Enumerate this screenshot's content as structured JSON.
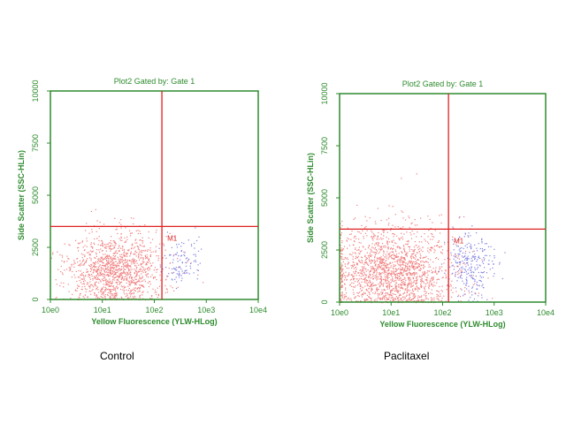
{
  "chart_data": [
    {
      "type": "scatter",
      "title": "Plot2   Gated by:  Gate 1",
      "xlabel": "Yellow Fluorescence (YLW-HLog)",
      "ylabel": "Side Scatter (SSC-HLin)",
      "x_scale": "log",
      "xlim": [
        1,
        10000
      ],
      "ylim": [
        0,
        10000
      ],
      "x_ticks": [
        "10e0",
        "10e1",
        "10e2",
        "10e3",
        "10e4"
      ],
      "y_ticks": [
        "0",
        "2500",
        "5000",
        "7500",
        "10000"
      ],
      "marker_label": "M1",
      "gate": {
        "x": 140,
        "y": 3500
      },
      "grid": false,
      "populations": [
        {
          "color": "#f08080",
          "x_log_center": 1.25,
          "x_log_spread": 0.45,
          "y_center": 1400,
          "y_spread": 900,
          "count": 1300,
          "region": "lower-left"
        },
        {
          "color": "#8080e0",
          "x_log_center": 2.5,
          "x_log_spread": 0.18,
          "y_center": 1700,
          "y_spread": 650,
          "count": 110,
          "region": "lower-right"
        }
      ],
      "caption": "Control"
    },
    {
      "type": "scatter",
      "title": "Plot2   Gated by:  Gate 1",
      "xlabel": "Yellow Fluorescence (YLW-HLog)",
      "ylabel": "Side Scatter (SSC-HLin)",
      "x_scale": "log",
      "xlim": [
        1,
        10000
      ],
      "ylim": [
        0,
        10000
      ],
      "x_ticks": [
        "10e0",
        "10e1",
        "10e2",
        "10e3",
        "10e4"
      ],
      "y_ticks": [
        "0",
        "2500",
        "5000",
        "7500",
        "10000"
      ],
      "marker_label": "M1",
      "gate": {
        "x": 130,
        "y": 3500
      },
      "grid": false,
      "populations": [
        {
          "color": "#f08080",
          "x_log_center": 1.0,
          "x_log_spread": 0.6,
          "y_center": 1500,
          "y_spread": 1100,
          "count": 1800,
          "region": "lower-left"
        },
        {
          "color": "#8080e0",
          "x_log_center": 2.55,
          "x_log_spread": 0.22,
          "y_center": 1800,
          "y_spread": 800,
          "count": 260,
          "region": "lower-right"
        }
      ],
      "caption": "Paclitaxel"
    }
  ]
}
